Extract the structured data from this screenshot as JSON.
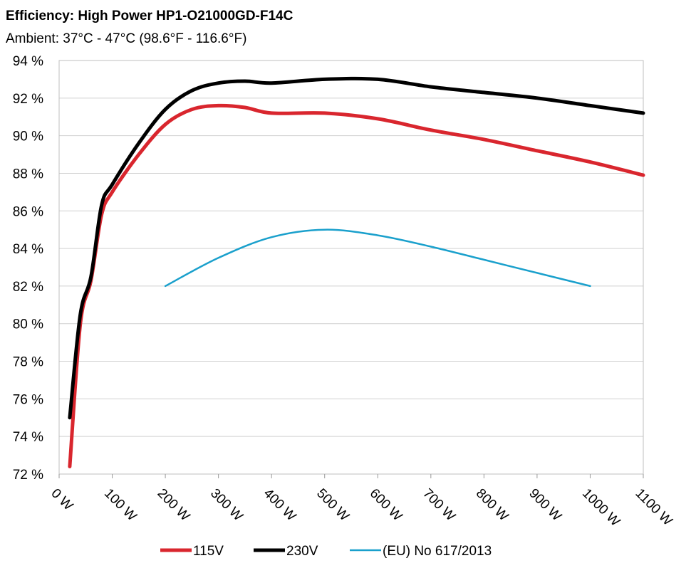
{
  "chart_data": {
    "type": "line",
    "title": "Efficiency: High Power HP1-O21000GD-F14C",
    "subtitle": "Ambient: 37°C - 47°C (98.6°F - 116.6°F)",
    "xlabel": "",
    "ylabel": "",
    "xlim": [
      0,
      1100
    ],
    "ylim": [
      72,
      94
    ],
    "x_ticks": [
      0,
      100,
      200,
      300,
      400,
      500,
      600,
      700,
      800,
      900,
      1000,
      1100
    ],
    "x_tick_labels": [
      "0 W",
      "100 W",
      "200 W",
      "300 W",
      "400 W",
      "500 W",
      "600 W",
      "700 W",
      "800 W",
      "900 W",
      "1000 W",
      "1100 W"
    ],
    "y_ticks": [
      72,
      74,
      76,
      78,
      80,
      82,
      84,
      86,
      88,
      90,
      92,
      94
    ],
    "y_tick_labels": [
      "72 %",
      "74 %",
      "76 %",
      "78 %",
      "80 %",
      "82 %",
      "84 %",
      "86 %",
      "88 %",
      "90 %",
      "92 %",
      "94 %"
    ],
    "grid": true,
    "legend_position": "bottom",
    "series": [
      {
        "name": "115V",
        "color": "#d9262e",
        "width": "thick",
        "points": [
          [
            20,
            72.4
          ],
          [
            40,
            80.0
          ],
          [
            60,
            82.3
          ],
          [
            80,
            85.8
          ],
          [
            100,
            87.0
          ],
          [
            150,
            89.0
          ],
          [
            200,
            90.6
          ],
          [
            250,
            91.4
          ],
          [
            300,
            91.6
          ],
          [
            350,
            91.5
          ],
          [
            400,
            91.2
          ],
          [
            500,
            91.2
          ],
          [
            600,
            90.9
          ],
          [
            700,
            90.3
          ],
          [
            800,
            89.8
          ],
          [
            900,
            89.2
          ],
          [
            1000,
            88.6
          ],
          [
            1100,
            87.9
          ]
        ]
      },
      {
        "name": "230V",
        "color": "#000000",
        "width": "thick",
        "points": [
          [
            20,
            75.0
          ],
          [
            40,
            80.5
          ],
          [
            60,
            82.5
          ],
          [
            80,
            86.3
          ],
          [
            100,
            87.4
          ],
          [
            150,
            89.6
          ],
          [
            200,
            91.4
          ],
          [
            250,
            92.4
          ],
          [
            300,
            92.8
          ],
          [
            350,
            92.9
          ],
          [
            400,
            92.8
          ],
          [
            500,
            93.0
          ],
          [
            600,
            93.0
          ],
          [
            700,
            92.6
          ],
          [
            800,
            92.3
          ],
          [
            900,
            92.0
          ],
          [
            1000,
            91.6
          ],
          [
            1100,
            91.2
          ]
        ]
      },
      {
        "name": "(EU) No 617/2013",
        "color": "#1aa0cc",
        "width": "thin",
        "points": [
          [
            200,
            82.0
          ],
          [
            300,
            83.5
          ],
          [
            400,
            84.6
          ],
          [
            500,
            85.0
          ],
          [
            600,
            84.7
          ],
          [
            700,
            84.1
          ],
          [
            800,
            83.4
          ],
          [
            900,
            82.7
          ],
          [
            1000,
            82.0
          ]
        ]
      }
    ]
  }
}
